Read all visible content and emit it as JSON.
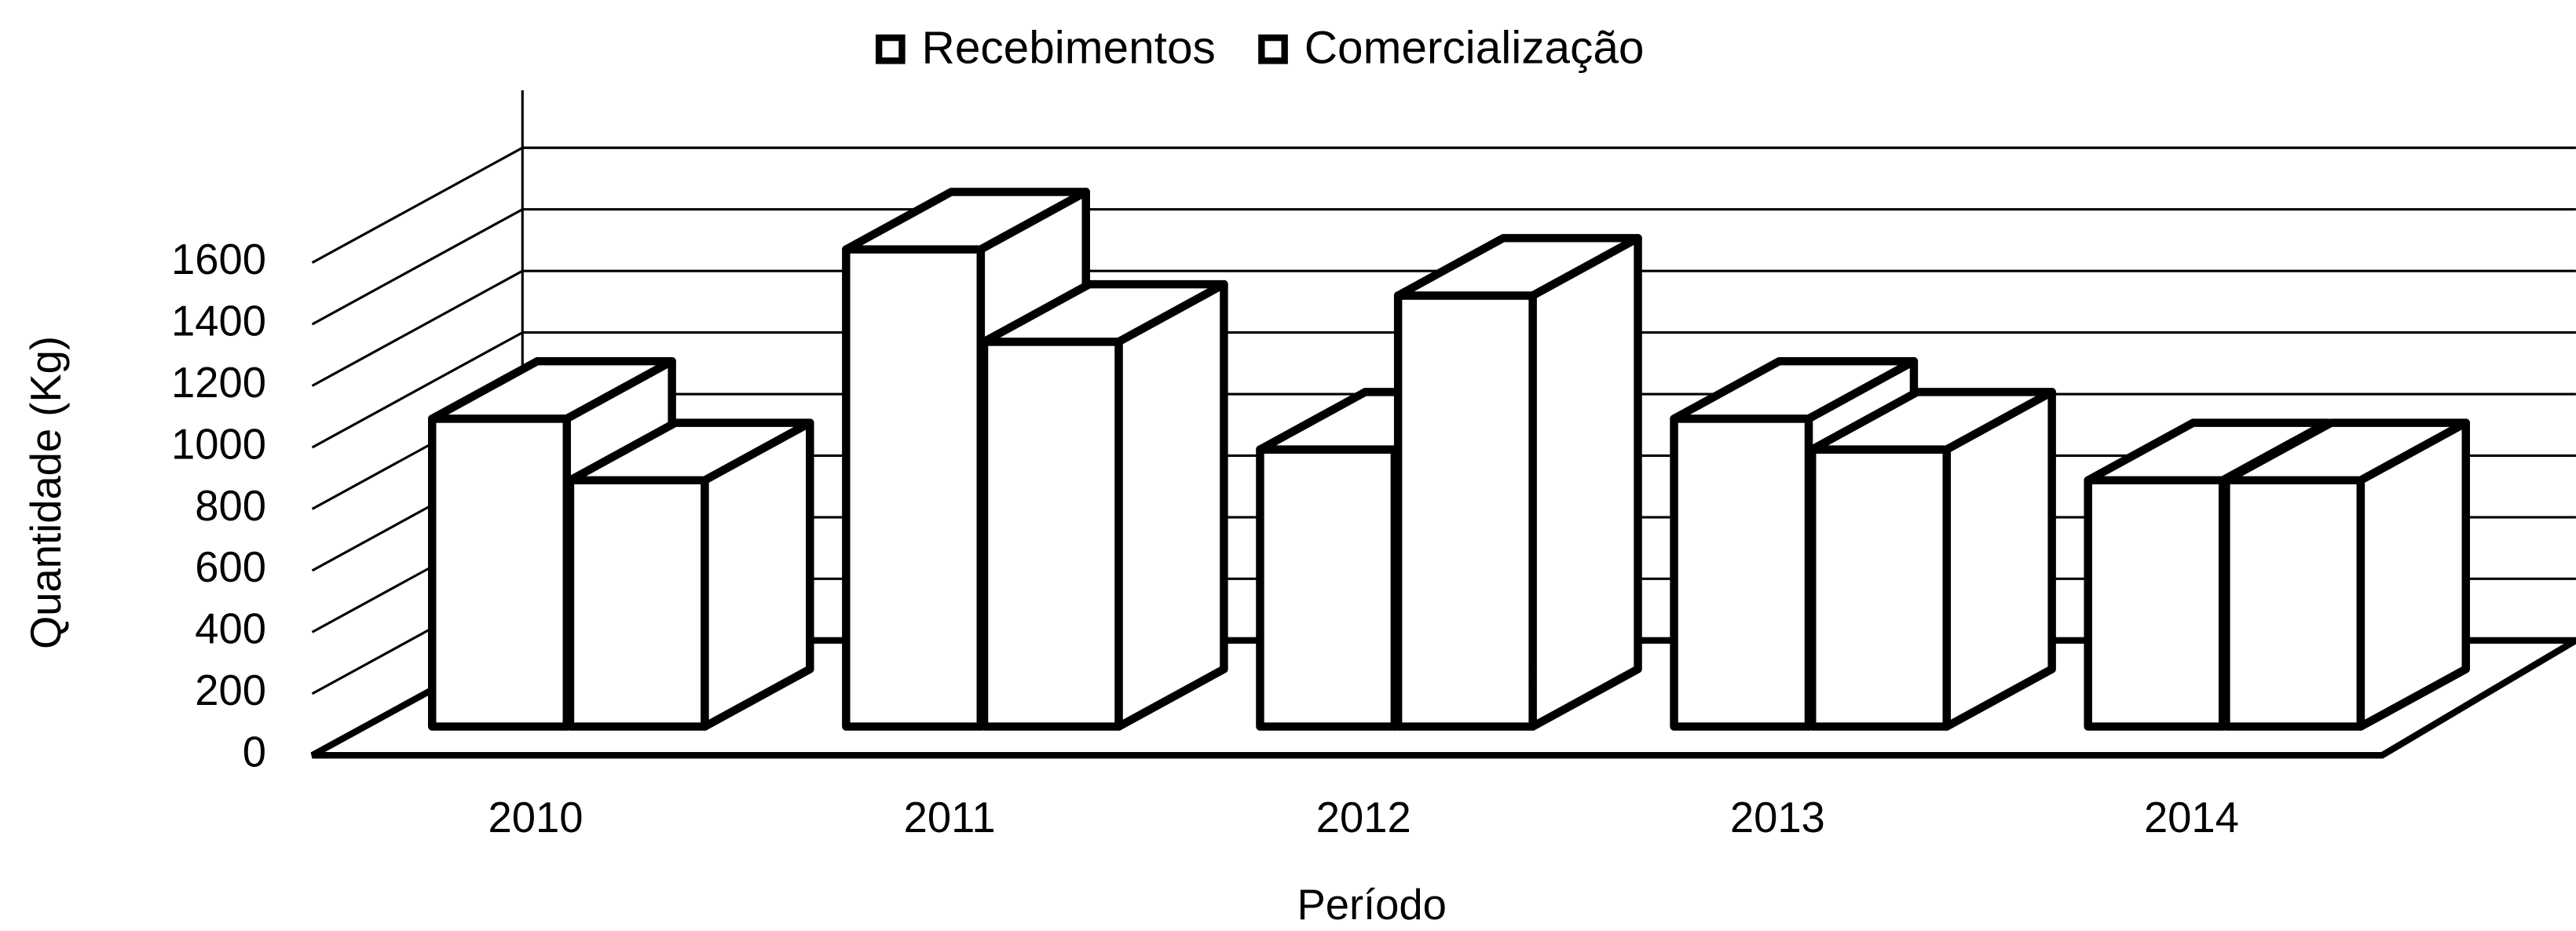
{
  "chart_data": {
    "type": "bar3d",
    "categories": [
      "2010",
      "2011",
      "2012",
      "2013",
      "2014"
    ],
    "series": [
      {
        "name": "Recebimentos",
        "color": "#ffffff",
        "values": [
          1000,
          1550,
          900,
          1000,
          800
        ]
      },
      {
        "name": "Comercialização",
        "color": "#ffffff",
        "values": [
          800,
          1250,
          1400,
          900,
          800
        ]
      }
    ],
    "ylim": [
      0,
      1600
    ],
    "yticks": [
      0,
      200,
      400,
      600,
      800,
      1000,
      1200,
      1400,
      1600
    ],
    "ylabel": "Quantidade (Kg)",
    "xlabel": "Período",
    "grid": true,
    "legend": "top"
  }
}
